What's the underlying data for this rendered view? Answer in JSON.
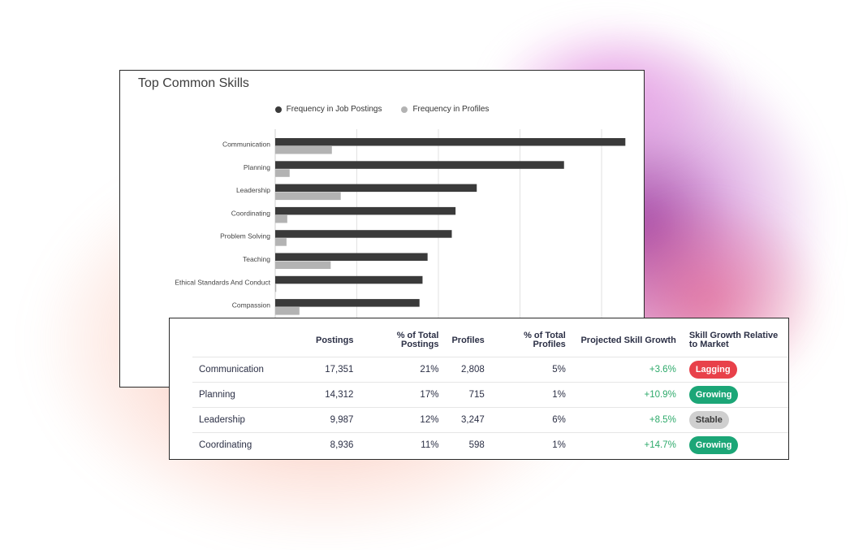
{
  "colors": {
    "postings": "#3a3a3a",
    "profiles": "#b3b3b3",
    "growth_positive": "#2eaa6b",
    "badge_lagging": "#e8414a",
    "badge_growing": "#1ca677",
    "badge_stable": "#cfcfcf"
  },
  "chart_data": {
    "type": "bar",
    "orientation": "horizontal",
    "title": "Top Common Skills",
    "categories": [
      "Communication",
      "Planning",
      "Leadership",
      "Coordinating",
      "Problem Solving",
      "Teaching",
      "Ethical Standards And Conduct",
      "Compassion"
    ],
    "series": [
      {
        "name": "Frequency in Job Postings",
        "values": [
          17351,
          14312,
          9987,
          8936,
          8750,
          7550,
          7300,
          7150
        ]
      },
      {
        "name": "Frequency in Profiles",
        "values": [
          2808,
          715,
          3247,
          598,
          560,
          2750,
          50,
          1200
        ]
      }
    ],
    "xlim": [
      0,
      17500
    ],
    "grid": true,
    "legend_position": "top-center"
  },
  "table": {
    "headers": {
      "skill": "",
      "postings": "Postings",
      "pct_postings": "% of Total Postings",
      "profiles": "Profiles",
      "pct_profiles": "% of Total Profiles",
      "projected": "Projected Skill Growth",
      "relative": "Skill Growth Relative to Market"
    },
    "rows": [
      {
        "skill": "Communication",
        "postings": "17,351",
        "pct_postings": "21%",
        "profiles": "2,808",
        "pct_profiles": "5%",
        "projected": "+3.6%",
        "relative": "Lagging"
      },
      {
        "skill": "Planning",
        "postings": "14,312",
        "pct_postings": "17%",
        "profiles": "715",
        "pct_profiles": "1%",
        "projected": "+10.9%",
        "relative": "Growing"
      },
      {
        "skill": "Leadership",
        "postings": "9,987",
        "pct_postings": "12%",
        "profiles": "3,247",
        "pct_profiles": "6%",
        "projected": "+8.5%",
        "relative": "Stable"
      },
      {
        "skill": "Coordinating",
        "postings": "8,936",
        "pct_postings": "11%",
        "profiles": "598",
        "pct_profiles": "1%",
        "projected": "+14.7%",
        "relative": "Growing"
      }
    ]
  }
}
